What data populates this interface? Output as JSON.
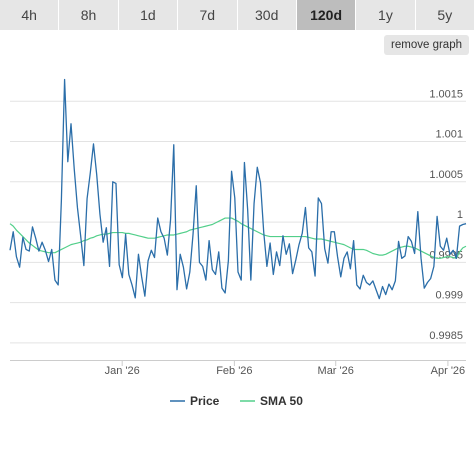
{
  "tabs": [
    {
      "label": "4h",
      "active": false
    },
    {
      "label": "8h",
      "active": false
    },
    {
      "label": "1d",
      "active": false
    },
    {
      "label": "7d",
      "active": false
    },
    {
      "label": "30d",
      "active": false
    },
    {
      "label": "120d",
      "active": true
    },
    {
      "label": "1y",
      "active": false
    },
    {
      "label": "5y",
      "active": false
    }
  ],
  "remove_graph_label": "remove graph",
  "chart_data": {
    "type": "line",
    "title": "",
    "xlabel": "",
    "ylabel": "",
    "ylim": [
      0.99835,
      1.00195
    ],
    "y_ticks": [
      "1.0015",
      "1.001",
      "1.0005",
      "1",
      "0.9995",
      "0.999",
      "0.9985"
    ],
    "y_tick_values": [
      1.0015,
      1.001,
      1.0005,
      1.0,
      0.9995,
      0.999,
      0.9985
    ],
    "x_start": "2025-12-01",
    "x_end": "2026-04-06",
    "x_ticks": [
      "Jan '26",
      "Feb '26",
      "Mar '26",
      "Apr '26"
    ],
    "x_tick_dates": [
      "2026-01-01",
      "2026-02-01",
      "2026-03-01",
      "2026-04-01"
    ],
    "grid": true,
    "legend_position": "bottom",
    "series": [
      {
        "name": "Price",
        "color": "#2b6ea9",
        "values": [
          0.99965,
          0.99988,
          0.99957,
          0.99944,
          0.99981,
          0.99966,
          0.99964,
          0.99994,
          0.9998,
          0.99964,
          0.99975,
          0.99965,
          0.99951,
          0.99966,
          0.99928,
          0.99922,
          1.00027,
          1.00177,
          1.00075,
          1.00122,
          1.00066,
          1.00018,
          0.99983,
          0.99946,
          1.00029,
          1.00061,
          1.00097,
          1.00059,
          1.0001,
          0.99975,
          0.99993,
          0.99945,
          1.0005,
          1.00048,
          0.99947,
          0.99931,
          0.99985,
          0.99935,
          0.99922,
          0.99906,
          0.9996,
          0.99932,
          0.99908,
          0.99952,
          0.99965,
          0.99956,
          1.00005,
          0.99988,
          0.9998,
          0.99959,
          1.00003,
          1.00096,
          0.99916,
          0.9996,
          0.99944,
          0.99917,
          0.99938,
          0.99985,
          1.00045,
          0.9995,
          0.99945,
          0.99928,
          0.99977,
          0.99941,
          0.99935,
          0.99963,
          0.99918,
          0.99912,
          0.99952,
          1.00063,
          1.0003,
          0.99938,
          0.99928,
          1.00074,
          1.00016,
          0.99928,
          1.00023,
          1.00068,
          1.00049,
          0.99988,
          0.99945,
          0.99974,
          0.99935,
          0.99963,
          0.99946,
          0.99983,
          0.9996,
          0.99973,
          0.99936,
          0.99953,
          0.99972,
          0.99986,
          1.00018,
          0.99968,
          0.99963,
          0.99933,
          1.0003,
          1.00023,
          0.99967,
          0.99949,
          0.99988,
          0.99988,
          0.99957,
          0.99932,
          0.99955,
          0.99963,
          0.99942,
          0.99977,
          0.99922,
          0.99917,
          0.99934,
          0.99925,
          0.99922,
          0.99927,
          0.99916,
          0.99905,
          0.9992,
          0.9991,
          0.99923,
          0.99916,
          0.99927,
          0.99976,
          0.99955,
          0.99958,
          0.99982,
          0.99976,
          0.99961,
          1.00013,
          0.99955,
          0.99918,
          0.99925,
          0.9993,
          0.99945,
          1.00007,
          0.9997,
          0.99965,
          0.9998,
          0.9996,
          0.99965,
          0.99955,
          0.99995,
          0.99997,
          0.99998
        ]
      },
      {
        "name": "SMA 50",
        "color": "#52cf8a",
        "values": [
          0.99998,
          0.99995,
          0.9999,
          0.99986,
          0.99982,
          0.99978,
          0.99974,
          0.99971,
          0.99968,
          0.99965,
          0.99964,
          0.99963,
          0.99962,
          0.99962,
          0.99962,
          0.99964,
          0.99966,
          0.99968,
          0.9997,
          0.99972,
          0.99973,
          0.99974,
          0.99975,
          0.99977,
          0.99978,
          0.9998,
          0.99981,
          0.99983,
          0.99984,
          0.99985,
          0.99985,
          0.99986,
          0.99987,
          0.99987,
          0.99987,
          0.99987,
          0.99986,
          0.99986,
          0.99985,
          0.99984,
          0.99983,
          0.99982,
          0.99981,
          0.9998,
          0.9998,
          0.9998,
          0.99981,
          0.99982,
          0.99983,
          0.99984,
          0.99984,
          0.99984,
          0.99985,
          0.99986,
          0.99987,
          0.99988,
          0.9999,
          0.99991,
          0.99992,
          0.99993,
          0.99994,
          0.99995,
          0.99996,
          0.99997,
          0.99999,
          1.00001,
          1.00003,
          1.00005,
          1.00005,
          1.00005,
          1.00003,
          1.00001,
          0.99998,
          0.99996,
          0.99994,
          0.99992,
          0.9999,
          0.99988,
          0.99986,
          0.99984,
          0.99983,
          0.99982,
          0.99982,
          0.99982,
          0.99982,
          0.99982,
          0.99982,
          0.99982,
          0.99982,
          0.99982,
          0.99982,
          0.99982,
          0.99982,
          0.99981,
          0.9998,
          0.99979,
          0.99979,
          0.99979,
          0.99978,
          0.99977,
          0.99976,
          0.99975,
          0.99974,
          0.99973,
          0.99972,
          0.9997,
          0.99968,
          0.99966,
          0.99966,
          0.99966,
          0.99966,
          0.99965,
          0.99963,
          0.99961,
          0.9996,
          0.99959,
          0.99959,
          0.9996,
          0.99962,
          0.99964,
          0.99966,
          0.99968,
          0.99969,
          0.9997,
          0.9997,
          0.99969,
          0.99968,
          0.99966,
          0.99964,
          0.99962,
          0.9996,
          0.99958,
          0.99956,
          0.99955,
          0.99955,
          0.99956,
          0.99957,
          0.99957,
          0.99956,
          0.99955,
          0.99963,
          0.99968,
          0.9997
        ]
      }
    ]
  }
}
